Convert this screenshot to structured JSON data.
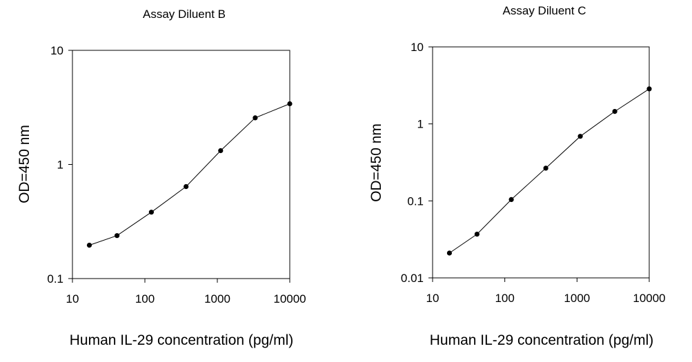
{
  "chart_data": [
    {
      "type": "line",
      "title": "Assay Diluent B",
      "xlabel": "Human IL-29 concentration (pg/ml)",
      "ylabel": "OD=450 nm",
      "x_scale": "log",
      "y_scale": "log",
      "xlim": [
        10,
        10000
      ],
      "ylim": [
        0.1,
        10
      ],
      "x_ticks": [
        "10",
        "100",
        "1000",
        "10000"
      ],
      "y_ticks": [
        "0.1",
        "1",
        "10"
      ],
      "grid": false,
      "series": [
        {
          "x": [
            17.1,
            41.2,
            123,
            370,
            1111,
            3333,
            10000
          ],
          "y": [
            0.196,
            0.238,
            0.382,
            0.64,
            1.32,
            2.56,
            3.4
          ]
        }
      ]
    },
    {
      "type": "line",
      "title": "Assay Diluent C",
      "xlabel": "Human IL-29 concentration (pg/ml)",
      "ylabel": "OD=450 nm",
      "x_scale": "log",
      "y_scale": "log",
      "xlim": [
        10,
        10000
      ],
      "ylim": [
        0.01,
        10
      ],
      "x_ticks": [
        "10",
        "100",
        "1000",
        "10000"
      ],
      "y_ticks": [
        "0.01",
        "0.1",
        "1",
        "10"
      ],
      "grid": false,
      "series": [
        {
          "x": [
            17.1,
            41.2,
            123,
            370,
            1111,
            3333,
            10000
          ],
          "y": [
            0.021,
            0.037,
            0.104,
            0.266,
            0.69,
            1.45,
            2.85
          ]
        }
      ]
    }
  ]
}
